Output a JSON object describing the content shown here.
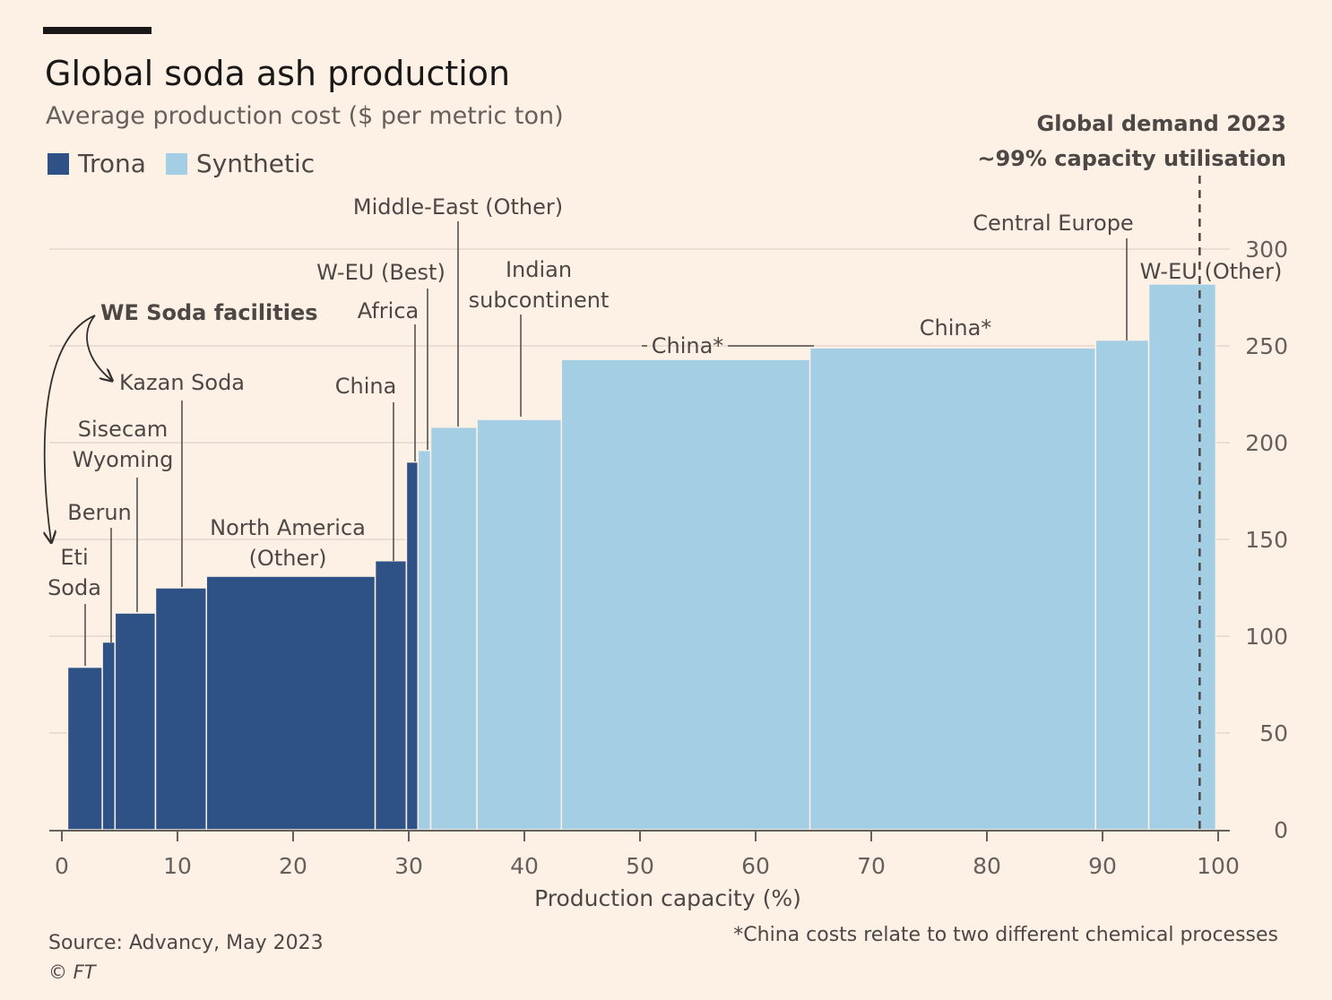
{
  "header": {
    "title": "Global soda ash production",
    "subtitle": "Average production cost ($ per metric ton)"
  },
  "legend": [
    {
      "label": "Trona",
      "color": "#2E5286"
    },
    {
      "label": "Synthetic",
      "color": "#A3CEE3"
    }
  ],
  "footer": {
    "source": "Source: Advancy, May 2023",
    "copyright": "© FT",
    "footnote": "*China costs relate to two different chemical processes"
  },
  "chart_data": {
    "type": "bar",
    "subtype": "cost-curve",
    "xlabel": "Production capacity (%)",
    "ylabel": "",
    "xlim": [
      0,
      100
    ],
    "ylim": [
      0,
      300
    ],
    "x_ticks": [
      0,
      10,
      20,
      30,
      40,
      50,
      60,
      70,
      80,
      90,
      100
    ],
    "y_ticks": [
      0,
      50,
      100,
      150,
      200,
      250,
      300
    ],
    "grid": "horizontal",
    "y_axis_side": "right",
    "series": [
      {
        "name": "Trona",
        "color": "#2E5286"
      },
      {
        "name": "Synthetic",
        "color": "#A3CEE3"
      }
    ],
    "bars": [
      {
        "label": "Eti Soda",
        "x0": 0.5,
        "x1": 3.5,
        "value": 84,
        "series": "Trona"
      },
      {
        "label": "Berun",
        "x0": 3.5,
        "x1": 4.6,
        "value": 97,
        "series": "Trona"
      },
      {
        "label": "Sisecam Wyoming",
        "x0": 4.6,
        "x1": 8.1,
        "value": 112,
        "series": "Trona"
      },
      {
        "label": "Kazan Soda",
        "x0": 8.1,
        "x1": 12.5,
        "value": 125,
        "series": "Trona"
      },
      {
        "label": "North America (Other)",
        "x0": 12.5,
        "x1": 27.1,
        "value": 131,
        "series": "Trona"
      },
      {
        "label": "China",
        "x0": 27.1,
        "x1": 29.8,
        "value": 139,
        "series": "Trona"
      },
      {
        "label": "Africa",
        "x0": 29.8,
        "x1": 30.8,
        "value": 190,
        "series": "Trona"
      },
      {
        "label": "W-EU (Best)",
        "x0": 30.8,
        "x1": 31.9,
        "value": 196,
        "series": "Synthetic"
      },
      {
        "label": "Middle-East (Other)",
        "x0": 31.9,
        "x1": 35.9,
        "value": 208,
        "series": "Synthetic"
      },
      {
        "label": "Indian subcontinent",
        "x0": 35.9,
        "x1": 43.2,
        "value": 212,
        "series": "Synthetic"
      },
      {
        "label": "China*",
        "x0": 43.2,
        "x1": 64.7,
        "value": 243,
        "series": "Synthetic"
      },
      {
        "label": "China*",
        "x0": 64.7,
        "x1": 89.4,
        "value": 249,
        "series": "Synthetic"
      },
      {
        "label": "Central Europe",
        "x0": 89.4,
        "x1": 94.0,
        "value": 253,
        "series": "Synthetic"
      },
      {
        "label": "W-EU (Other)",
        "x0": 94.0,
        "x1": 99.8,
        "value": 282,
        "series": "Synthetic"
      }
    ],
    "annotations": [
      {
        "text": "Global demand 2023",
        "x": 98.4
      },
      {
        "text": "~99% capacity utilisation",
        "x": 98.4
      },
      {
        "text": "WE Soda facilities"
      }
    ]
  }
}
